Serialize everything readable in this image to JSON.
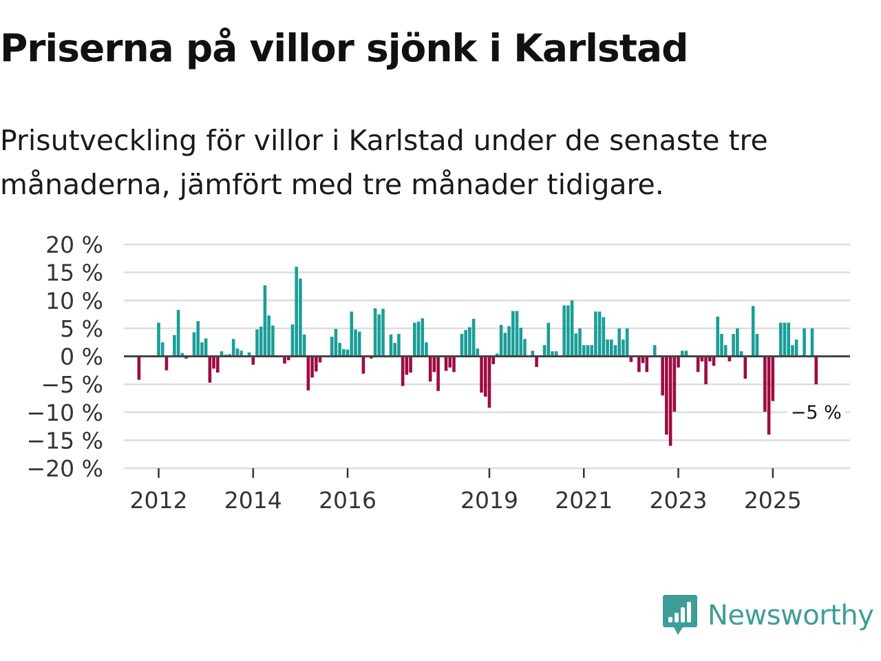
{
  "header": {
    "title": "Priserna på villor sjönk i Karlstad",
    "subtitle_line1": "Prisutveckling för villor i Karlstad under de senaste tre",
    "subtitle_line2": "månaderna, jämfört med tre månader tidigare."
  },
  "brand": {
    "name": "Newsworthy",
    "color": "#3d9e98"
  },
  "colors": {
    "positive": "#1a9e98",
    "negative": "#9e0b41",
    "grid": "#dddddd",
    "baseline": "#444444"
  },
  "chart_data": {
    "type": "bar",
    "title": "Priserna på villor sjönk i Karlstad",
    "xlabel": "",
    "ylabel": "",
    "ylim": [
      -20,
      20
    ],
    "y_ticks": [
      20,
      15,
      10,
      5,
      0,
      -5,
      -10,
      -15,
      -20
    ],
    "y_tick_labels": [
      "20 %",
      "15 %",
      "10 %",
      "5 %",
      "0 %",
      "−5 %",
      "−10 %",
      "−15 %",
      "−20 %"
    ],
    "x_start": "2011-08",
    "x_ticks": [
      {
        "label": "2012",
        "date": "2012-01"
      },
      {
        "label": "2014",
        "date": "2014-01"
      },
      {
        "label": "2016",
        "date": "2016-01"
      },
      {
        "label": "2019",
        "date": "2019-01"
      },
      {
        "label": "2021",
        "date": "2021-01"
      },
      {
        "label": "2023",
        "date": "2023-01"
      },
      {
        "label": "2025",
        "date": "2025-01"
      }
    ],
    "values": [
      -4.2,
      0,
      0,
      0,
      0,
      6,
      2.5,
      -2.5,
      0,
      3.8,
      8.3,
      0.6,
      -0.4,
      0,
      4.3,
      6.3,
      2.5,
      3.2,
      -4.7,
      -2.2,
      -2.9,
      0.9,
      0.3,
      0.4,
      3.1,
      1.4,
      1,
      0.2,
      0.7,
      -1.5,
      4.8,
      5.3,
      12.7,
      7.3,
      5.5,
      0,
      0,
      -1.3,
      -0.7,
      5.7,
      16,
      13.9,
      3.9,
      -6.1,
      -3.8,
      -2.7,
      -1.1,
      0,
      0,
      3.5,
      4.9,
      2.4,
      1.3,
      1.2,
      8,
      4.8,
      4.4,
      -3.1,
      0,
      -0.4,
      8.6,
      7.5,
      8.5,
      0,
      3.9,
      2.4,
      4,
      -5.3,
      -3.3,
      -2.9,
      6,
      6.2,
      6.8,
      2.5,
      -4.5,
      -2.8,
      -6.2,
      0,
      -2.6,
      -2,
      -2.8,
      0,
      4,
      4.7,
      5.2,
      6.7,
      1.4,
      -6.5,
      -7.2,
      -9.2,
      -1.4,
      0.5,
      5.6,
      4.2,
      5.4,
      8.1,
      8.1,
      5.1,
      3.1,
      0,
      1,
      -1.9,
      0,
      2,
      6,
      0.9,
      0.9,
      0,
      9.1,
      9.1,
      10,
      4.1,
      5,
      2,
      2,
      2,
      8,
      8,
      7,
      3,
      3,
      2,
      5,
      3,
      5,
      -1,
      0,
      -2.8,
      -1.2,
      -2.8,
      0,
      2,
      0,
      -7,
      -14,
      -16,
      -9.9,
      -2,
      1,
      1,
      0,
      0,
      -2.8,
      -0.9,
      -5,
      -0.9,
      -1.7,
      7.1,
      4,
      2,
      -0.9,
      4,
      5,
      0.9,
      -4,
      0,
      9,
      4,
      0,
      -9.9,
      -14,
      -8,
      0,
      6,
      6,
      6,
      2,
      3,
      0,
      5,
      0,
      5,
      -5
    ],
    "annotations": [
      {
        "text": "−5 %",
        "target": "last"
      }
    ]
  }
}
